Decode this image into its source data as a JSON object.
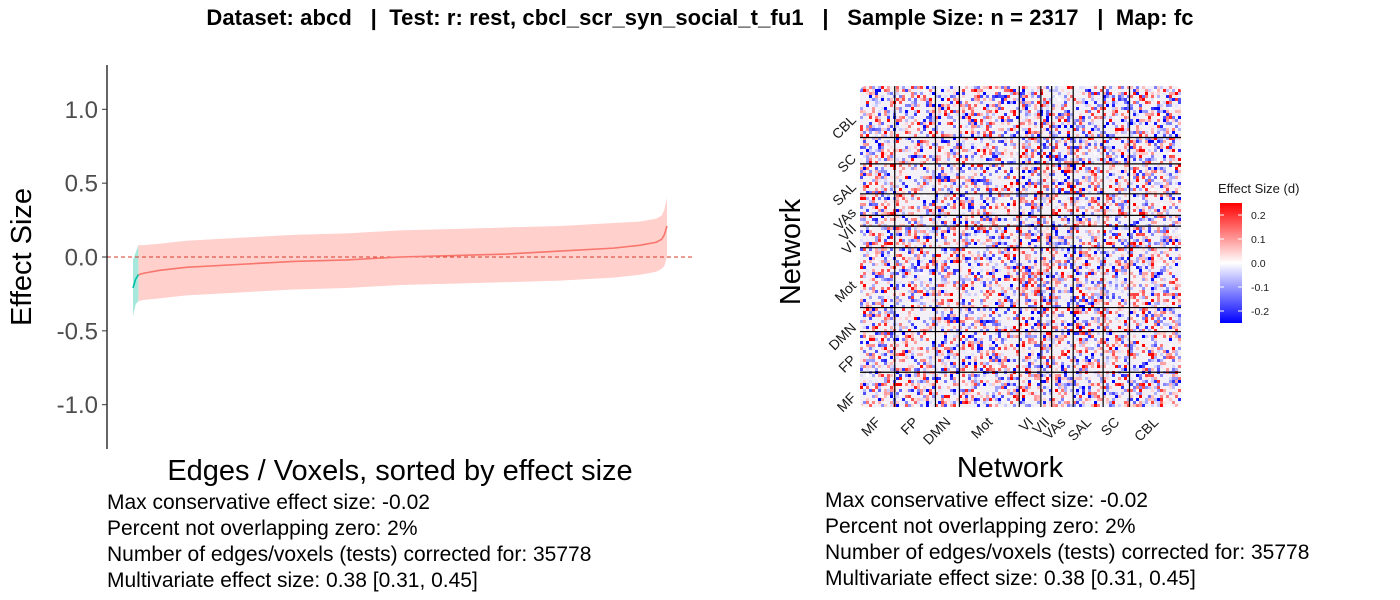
{
  "title": "Dataset: abcd   |  Test: r: rest, cbcl_scr_syn_social_t_fu1   |   Sample Size: n = 2317   |  Map: fc",
  "colors": {
    "ci_ribbon": "#ffd0cc",
    "ci_ribbon_nonzero": "#a6e8dc",
    "line": "#f8766d",
    "line_nonzero": "#00bfa6",
    "zero_line": "#d93a2b",
    "heat_high": "#ff0000",
    "heat_mid": "#ffffff",
    "heat_low": "#0000ff"
  },
  "chart_data": [
    {
      "type": "line",
      "title": "",
      "xlabel": "Edges / Voxels, sorted by effect size",
      "ylabel": "Effect Size",
      "ylim": [
        -1.3,
        1.3
      ],
      "yticks": [
        "1.0",
        "0.5",
        "0.0",
        "-0.5",
        "-1.0"
      ],
      "ytick_values": [
        1.0,
        0.5,
        0.0,
        -0.5,
        -1.0
      ],
      "x": [
        0,
        0.005,
        0.01,
        0.02,
        0.05,
        0.1,
        0.2,
        0.3,
        0.4,
        0.5,
        0.6,
        0.7,
        0.8,
        0.9,
        0.95,
        0.98,
        0.99,
        0.995,
        1.0
      ],
      "estimate": [
        -0.21,
        -0.15,
        -0.12,
        -0.11,
        -0.09,
        -0.07,
        -0.05,
        -0.03,
        -0.02,
        0.0,
        0.01,
        0.02,
        0.04,
        0.06,
        0.08,
        0.1,
        0.12,
        0.15,
        0.21
      ],
      "ci_lower": [
        -0.4,
        -0.32,
        -0.3,
        -0.29,
        -0.28,
        -0.26,
        -0.24,
        -0.22,
        -0.21,
        -0.19,
        -0.18,
        -0.17,
        -0.16,
        -0.14,
        -0.12,
        -0.1,
        -0.08,
        -0.06,
        0.0
      ],
      "ci_upper": [
        -0.02,
        0.03,
        0.08,
        0.08,
        0.09,
        0.11,
        0.13,
        0.15,
        0.16,
        0.18,
        0.19,
        0.2,
        0.21,
        0.23,
        0.24,
        0.26,
        0.28,
        0.32,
        0.4
      ],
      "zero_line": 0,
      "grid": false,
      "stats": [
        "Max conservative effect size: -0.02",
        "Percent not overlapping zero: 2%",
        "Number of edges/voxels (tests) corrected for: 35778",
        "Multivariate effect size: 0.38 [0.31, 0.45]"
      ]
    },
    {
      "type": "heatmap",
      "title": "",
      "xlabel": "Network",
      "ylabel": "Network",
      "networks_x": [
        "MF",
        "FP",
        "DMN",
        "Mot",
        "VI",
        "VII",
        "VAs",
        "SAL",
        "SC",
        "CBL"
      ],
      "networks_y_bottom_to_top": [
        "MF",
        "FP",
        "DMN",
        "Mot",
        "VI",
        "VII",
        "VAs",
        "SAL",
        "SC",
        "CBL"
      ],
      "network_sizes": [
        29,
        34,
        20,
        50,
        18,
        9,
        18,
        25,
        22,
        43
      ],
      "legend": {
        "title": "Effect Size (d)",
        "ticks": [
          "0.2",
          "0.1",
          "0.0",
          "-0.1",
          "-0.2"
        ],
        "tick_values": [
          0.2,
          0.1,
          0.0,
          -0.1,
          -0.2
        ],
        "range": [
          -0.25,
          0.25
        ],
        "placement": "right"
      },
      "stats": [
        "Max conservative effect size: -0.02",
        "Percent not overlapping zero: 2%",
        "Number of edges/voxels (tests) corrected for: 35778",
        "Multivariate effect size: 0.38 [0.31, 0.45]"
      ]
    }
  ]
}
